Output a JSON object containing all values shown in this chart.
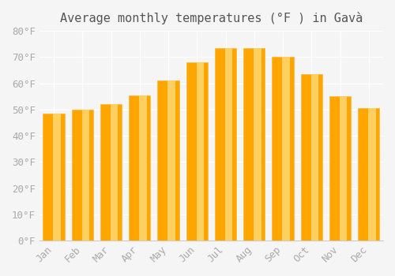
{
  "title": "Average monthly temperatures (°F ) in Gavà",
  "months": [
    "Jan",
    "Feb",
    "Mar",
    "Apr",
    "May",
    "Jun",
    "Jul",
    "Aug",
    "Sep",
    "Oct",
    "Nov",
    "Dec"
  ],
  "values": [
    48.5,
    50.0,
    52.2,
    55.5,
    61.0,
    68.0,
    73.5,
    73.5,
    70.0,
    63.5,
    55.0,
    50.5
  ],
  "bar_color": "#FFA500",
  "bar_edge_color": "#FFB833",
  "ylim": [
    0,
    80
  ],
  "yticks": [
    0,
    10,
    20,
    30,
    40,
    50,
    60,
    70,
    80
  ],
  "background_color": "#f5f5f5",
  "grid_color": "#ffffff",
  "title_fontsize": 11,
  "tick_fontsize": 9,
  "tick_font_family": "monospace"
}
